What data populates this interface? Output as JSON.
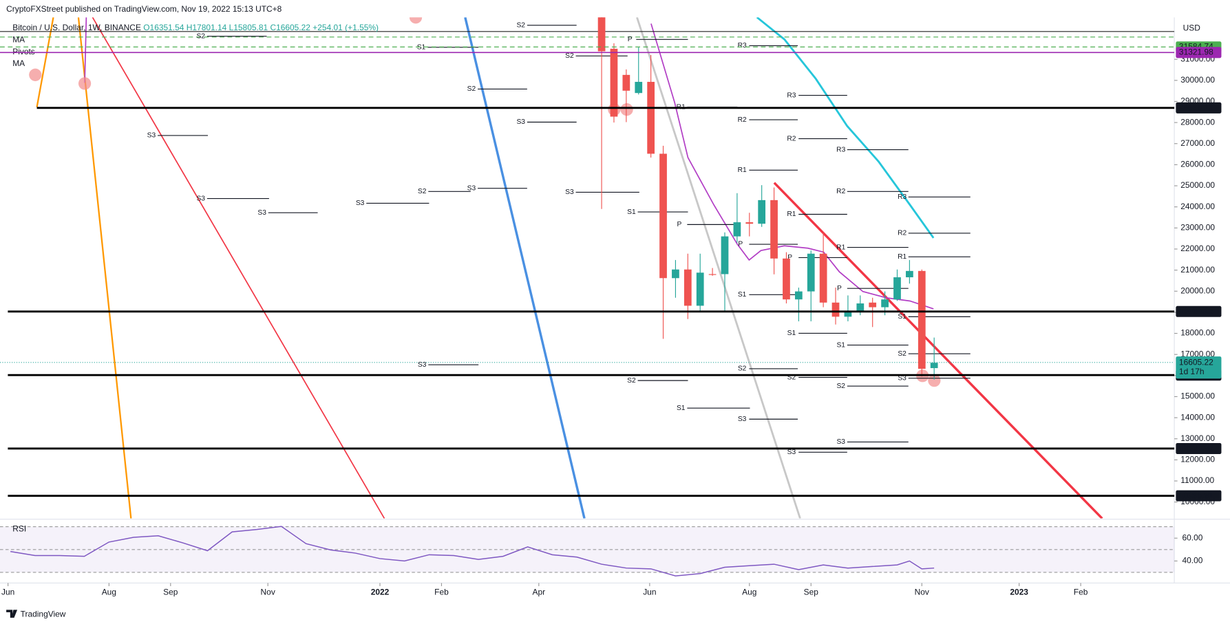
{
  "header": {
    "publisher": "CryptoFXStreet published on TradingView.com, Nov 19, 2022 15:13 UTC+8",
    "symbol": "Bitcoin / U.S. Dollar, 1W, BINANCE",
    "o": "O16351.54",
    "h": "H17801.14",
    "l": "L15805.81",
    "c": "C16605.22",
    "change": "+254.01 (+1.55%)",
    "indicators": [
      "MA",
      "Pivots",
      "MA"
    ],
    "currency": "USD",
    "countdown": "1d 17h",
    "brand": "TradingView"
  },
  "pivot_labels": [
    "S2",
    "S2",
    "S1",
    "P",
    "S2",
    "R3",
    "S2",
    "R3",
    "R1",
    "S3",
    "R2",
    "S3",
    "R2",
    "R3",
    "R1",
    "S3",
    "S2",
    "S3",
    "R2",
    "R3",
    "S3",
    "S3",
    "S1",
    "S3",
    "R1",
    "P",
    "R2",
    "P",
    "R1",
    "P",
    "R1",
    "P",
    "S1",
    "S1",
    "S1",
    "S1",
    "S2",
    "S3",
    "S2",
    "S2",
    "S3",
    "S2",
    "S2",
    "S1",
    "S3",
    "S3",
    "S3"
  ],
  "chart_data": [
    {
      "type": "candlestick",
      "up_color": "#26a69a",
      "down_color": "#ef5350",
      "x": [
        0,
        1,
        2,
        3,
        4,
        5,
        6,
        7,
        8,
        9,
        10,
        11,
        12,
        13,
        14,
        15,
        16,
        17,
        18,
        19,
        20,
        21,
        22,
        23,
        24,
        25,
        26,
        27
      ],
      "open": [
        33060,
        31500,
        30260,
        29400,
        29930,
        26520,
        20620,
        21030,
        19310,
        20810,
        20810,
        22600,
        23270,
        23200,
        24320,
        21550,
        19610,
        19990,
        21780,
        19460,
        18790,
        19010,
        19460,
        19240,
        19610,
        20660,
        20960,
        16351.54
      ],
      "high": [
        33500,
        31760,
        30520,
        31570,
        31200,
        26900,
        21480,
        21780,
        21780,
        21100,
        22790,
        24650,
        23720,
        25030,
        24920,
        21850,
        20170,
        21930,
        22790,
        20170,
        19800,
        19800,
        19690,
        19990,
        21030,
        21480,
        21030,
        17801.14
      ],
      "low": [
        23900,
        28000,
        28020,
        29330,
        26340,
        17740,
        19690,
        18680,
        19050,
        20730,
        19050,
        22300,
        22600,
        23050,
        20800,
        19420,
        18570,
        18570,
        19240,
        18420,
        18570,
        18860,
        18300,
        18860,
        19540,
        20360,
        15950,
        15805.81
      ],
      "close": [
        31380,
        28280,
        29510,
        29930,
        26520,
        20620,
        21030,
        19310,
        20880,
        20780,
        22600,
        23270,
        23200,
        24320,
        21550,
        19610,
        19990,
        21780,
        19460,
        18790,
        19010,
        19420,
        19240,
        19610,
        20660,
        20960,
        16320,
        16605.22
      ],
      "levels": [
        28695.13,
        19036.23,
        16020.44,
        12536.35,
        10295.91
      ],
      "ma_levels": [
        {
          "value": 31584.74,
          "color": "#4caf50"
        },
        {
          "value": 31321.98,
          "color": "#9c27b0"
        }
      ],
      "last_price": 16605.22,
      "xlim": [
        -48.85,
        46.5
      ],
      "xticks": [
        {
          "value": -48.2,
          "label": "Jun"
        },
        {
          "value": -40,
          "label": "Aug"
        },
        {
          "value": -35,
          "label": "Sep"
        },
        {
          "value": -27.1,
          "label": "Nov"
        },
        {
          "value": -18,
          "label": "2022"
        },
        {
          "value": -13,
          "label": "Feb"
        },
        {
          "value": -5.1,
          "label": "Apr"
        },
        {
          "value": 3.9,
          "label": "Jun"
        },
        {
          "value": 12,
          "label": "Aug"
        },
        {
          "value": 17,
          "label": "Sep"
        },
        {
          "value": 26,
          "label": "Nov"
        },
        {
          "value": 33.9,
          "label": "2023"
        },
        {
          "value": 38.9,
          "label": "Feb"
        }
      ],
      "ylim": [
        9222,
        32990
      ],
      "yticks": [
        {
          "value": 10000,
          "label": "10000.00"
        },
        {
          "value": 11000,
          "label": "11000.00"
        },
        {
          "value": 12000,
          "label": "12000.00"
        },
        {
          "value": 13000,
          "label": "13000.00"
        },
        {
          "value": 14000,
          "label": "14000.00"
        },
        {
          "value": 15000,
          "label": "15000.00"
        },
        {
          "value": 16000,
          "label": "16000.00"
        },
        {
          "value": 17000,
          "label": "17000.00"
        },
        {
          "value": 18000,
          "label": "18000.00"
        },
        {
          "value": 19000,
          "label": "19000.00"
        },
        {
          "value": 20000,
          "label": "20000.00"
        },
        {
          "value": 21000,
          "label": "21000.00"
        },
        {
          "value": 22000,
          "label": "22000.00"
        },
        {
          "value": 23000,
          "label": "23000.00"
        },
        {
          "value": 24000,
          "label": "24000.00"
        },
        {
          "value": 25000,
          "label": "25000.00"
        },
        {
          "value": 26000,
          "label": "26000.00"
        },
        {
          "value": 27000,
          "label": "27000.00"
        },
        {
          "value": 28000,
          "label": "28000.00"
        },
        {
          "value": 29000,
          "label": "29000.00"
        },
        {
          "value": 30000,
          "label": "30000.00"
        },
        {
          "value": 31000,
          "label": "31000.00"
        }
      ],
      "grid": false
    },
    {
      "type": "line",
      "title": "RSI",
      "x": [
        -48,
        -46,
        -44,
        -42,
        -40,
        -38,
        -36,
        -34,
        -32,
        -30,
        -28,
        -26,
        -24,
        -22,
        -20,
        -18,
        -16,
        -14,
        -12,
        -10,
        -8,
        -6,
        -4,
        -2,
        0,
        2,
        4,
        6,
        8,
        10,
        12,
        14,
        16,
        18,
        20,
        22,
        24,
        25,
        26,
        27
      ],
      "series": [
        {
          "name": "RSI",
          "color": "#7e57c2",
          "values": [
            48.3,
            44.8,
            44.8,
            44.1,
            56.6,
            60.7,
            62.1,
            55.9,
            49.0,
            65.5,
            67.6,
            70.3,
            55.2,
            49.7,
            46.9,
            42.1,
            40.0,
            45.5,
            44.8,
            41.4,
            44.1,
            52.4,
            45.5,
            43.4,
            37.2,
            33.8,
            33.1,
            26.9,
            29.0,
            34.5,
            35.9,
            37.2,
            32.4,
            36.6,
            33.8,
            35.2,
            36.6,
            40.0,
            33.1,
            33.8
          ]
        }
      ],
      "xlim": [
        -48.85,
        46.5
      ],
      "ylim": [
        20.7,
        75.9
      ],
      "yticks": [
        {
          "value": 40,
          "label": "40.00"
        },
        {
          "value": 60,
          "label": "60.00"
        }
      ]
    }
  ]
}
